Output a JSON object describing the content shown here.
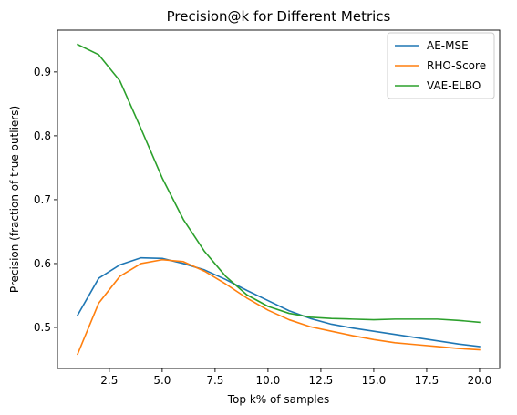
{
  "chart_data": {
    "type": "line",
    "title": "Precision@k for Different Metrics",
    "xlabel": "Top k% of samples",
    "ylabel": "Precision (fraction of true outliers)",
    "xlim": [
      0.05,
      20.95
    ],
    "ylim": [
      0.4357,
      0.9655
    ],
    "xticks": [
      2.5,
      5.0,
      7.5,
      10.0,
      12.5,
      15.0,
      17.5,
      20.0
    ],
    "xtick_labels": [
      "2.5",
      "5.0",
      "7.5",
      "10.0",
      "12.5",
      "15.0",
      "17.5",
      "20.0"
    ],
    "yticks": [
      0.5,
      0.6,
      0.7,
      0.8,
      0.9
    ],
    "ytick_labels": [
      "0.5",
      "0.6",
      "0.7",
      "0.8",
      "0.9"
    ],
    "grid": false,
    "legend_position": "top-right",
    "x": [
      1,
      2,
      3,
      4,
      5,
      6,
      7,
      8,
      9,
      10,
      11,
      12,
      13,
      14,
      15,
      16,
      17,
      18,
      19,
      20
    ],
    "series": [
      {
        "name": "AE-MSE",
        "color": "#1f77b4",
        "values": [
          0.519,
          0.577,
          0.598,
          0.609,
          0.608,
          0.6,
          0.59,
          0.575,
          0.558,
          0.542,
          0.526,
          0.514,
          0.505,
          0.499,
          0.494,
          0.489,
          0.484,
          0.479,
          0.474,
          0.47
        ]
      },
      {
        "name": "RHO-Score",
        "color": "#ff7f0e",
        "values": [
          0.458,
          0.538,
          0.58,
          0.6,
          0.606,
          0.603,
          0.588,
          0.568,
          0.546,
          0.527,
          0.512,
          0.501,
          0.494,
          0.487,
          0.481,
          0.476,
          0.473,
          0.47,
          0.467,
          0.465
        ]
      },
      {
        "name": "VAE-ELBO",
        "color": "#2ca02c",
        "values": [
          0.943,
          0.927,
          0.886,
          0.811,
          0.734,
          0.669,
          0.619,
          0.58,
          0.551,
          0.533,
          0.522,
          0.516,
          0.514,
          0.513,
          0.512,
          0.513,
          0.513,
          0.513,
          0.511,
          0.508
        ]
      }
    ]
  }
}
